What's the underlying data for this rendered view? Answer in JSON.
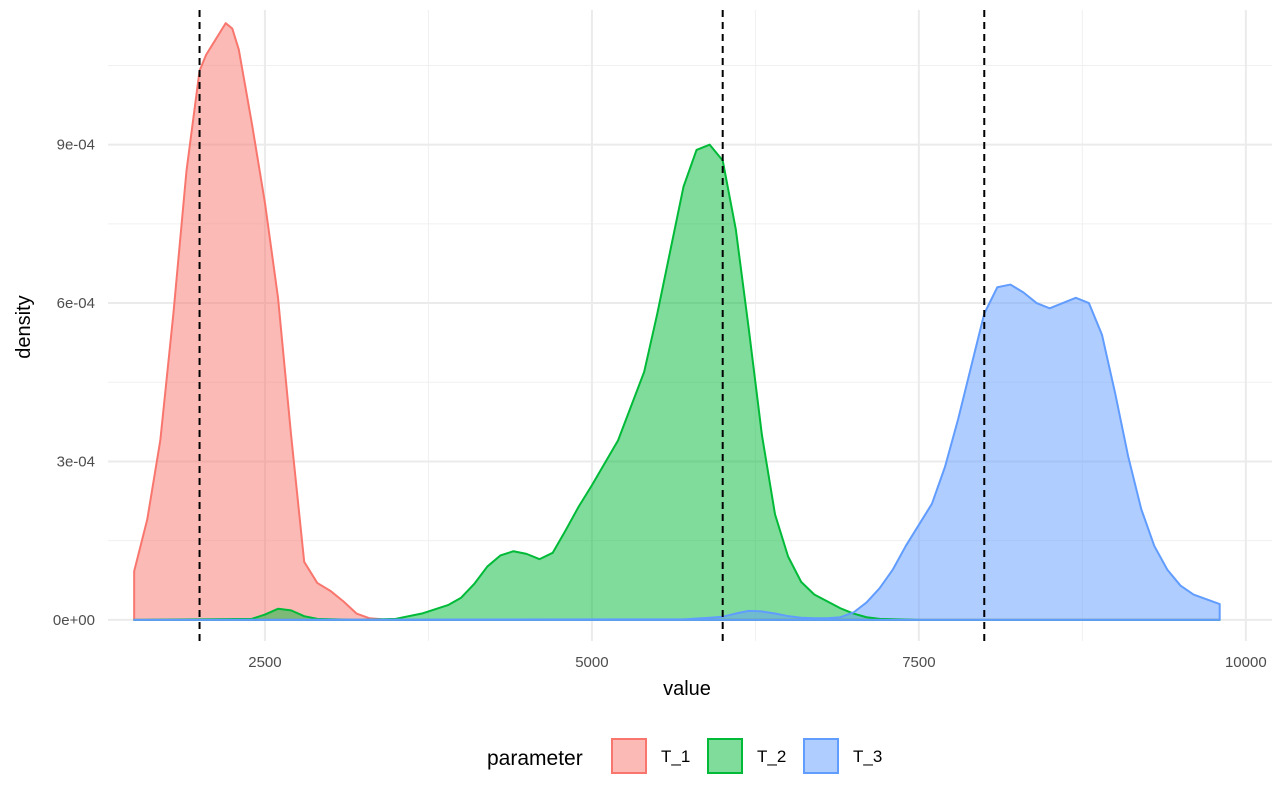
{
  "chart_data": {
    "type": "area",
    "xlabel": "value",
    "ylabel": "density",
    "xlim": [
      1300,
      10200
    ],
    "ylim": [
      -4e-05,
      0.001155
    ],
    "x_ticks": [
      2500,
      5000,
      7500,
      10000
    ],
    "x_tick_labels": [
      "2500",
      "5000",
      "7500",
      "10000"
    ],
    "y_ticks": [
      0,
      0.0003,
      0.0006,
      0.0009
    ],
    "y_tick_labels": [
      "0e+00",
      "3e-04",
      "6e-04",
      "9e-04"
    ],
    "grid": true,
    "legend": {
      "title": "parameter",
      "position": "bottom"
    },
    "reference_lines_x": [
      2000,
      6000,
      8000
    ],
    "series": [
      {
        "name": "T_1",
        "fill": "#F8766D",
        "stroke": "#F8766D",
        "x": [
          1500,
          1600,
          1700,
          1800,
          1900,
          2000,
          2050,
          2100,
          2150,
          2200,
          2250,
          2300,
          2350,
          2400,
          2500,
          2600,
          2700,
          2800,
          2900,
          3000,
          3100,
          3200,
          3300,
          3400,
          3500,
          3700,
          4000,
          5000,
          6000,
          7000,
          8000,
          9000,
          9800
        ],
        "y": [
          9.2e-05,
          0.00019,
          0.00034,
          0.00058,
          0.00085,
          0.00104,
          0.00107,
          0.00109,
          0.00111,
          0.00113,
          0.00112,
          0.00108,
          0.00101,
          0.00094,
          0.00079,
          0.00061,
          0.00035,
          0.00011,
          7e-05,
          5.5e-05,
          3.5e-05,
          1.2e-05,
          3e-06,
          1e-06,
          0,
          0,
          0,
          0,
          0,
          0,
          0,
          0,
          0
        ]
      },
      {
        "name": "T_2",
        "fill": "#00BA38",
        "stroke": "#00BA38",
        "x": [
          1500,
          2400,
          2500,
          2600,
          2700,
          2800,
          2900,
          3200,
          3500,
          3700,
          3900,
          4000,
          4100,
          4200,
          4300,
          4400,
          4500,
          4600,
          4700,
          4800,
          4900,
          5000,
          5200,
          5400,
          5500,
          5600,
          5700,
          5800,
          5900,
          6000,
          6100,
          6200,
          6300,
          6400,
          6500,
          6600,
          6700,
          6800,
          6900,
          7000,
          7100,
          7200,
          7500,
          8000,
          9000,
          9800
        ],
        "y": [
          0,
          2e-06,
          1e-05,
          2.1e-05,
          1.8e-05,
          7e-06,
          2e-06,
          0,
          2e-06,
          1.2e-05,
          2.8e-05,
          4.2e-05,
          6.8e-05,
          0.000101,
          0.000122,
          0.00013,
          0.000125,
          0.000115,
          0.000127,
          0.00017,
          0.000215,
          0.000255,
          0.00034,
          0.00047,
          0.00058,
          0.0007,
          0.00082,
          0.00089,
          0.0009,
          0.00087,
          0.00074,
          0.00055,
          0.00035,
          0.0002,
          0.00012,
          7.2e-05,
          4.8e-05,
          3.5e-05,
          2.2e-05,
          1.2e-05,
          5e-06,
          2e-06,
          0,
          0,
          0,
          0
        ]
      },
      {
        "name": "T_3",
        "fill": "#619CFF",
        "stroke": "#619CFF",
        "x": [
          1500,
          5700,
          5900,
          6000,
          6100,
          6200,
          6300,
          6400,
          6500,
          6600,
          6700,
          6800,
          6900,
          7000,
          7100,
          7200,
          7300,
          7400,
          7500,
          7600,
          7700,
          7800,
          7900,
          8000,
          8100,
          8200,
          8300,
          8400,
          8500,
          8600,
          8700,
          8800,
          8900,
          9000,
          9100,
          9200,
          9300,
          9400,
          9500,
          9600,
          9700,
          9800
        ],
        "y": [
          0,
          1e-06,
          4e-06,
          6e-06,
          1.2e-05,
          1.7e-05,
          1.6e-05,
          1.2e-05,
          7e-06,
          4e-06,
          3e-06,
          3e-06,
          5e-06,
          1.4e-05,
          3.3e-05,
          6e-05,
          9.5e-05,
          0.00014,
          0.00018,
          0.00022,
          0.00029,
          0.00038,
          0.00048,
          0.00058,
          0.00063,
          0.000635,
          0.00062,
          0.0006,
          0.00059,
          0.0006,
          0.00061,
          0.0006,
          0.00054,
          0.00043,
          0.00031,
          0.00021,
          0.00014,
          9.5e-05,
          6.5e-05,
          4.8e-05,
          3.9e-05,
          3e-05
        ]
      }
    ]
  }
}
